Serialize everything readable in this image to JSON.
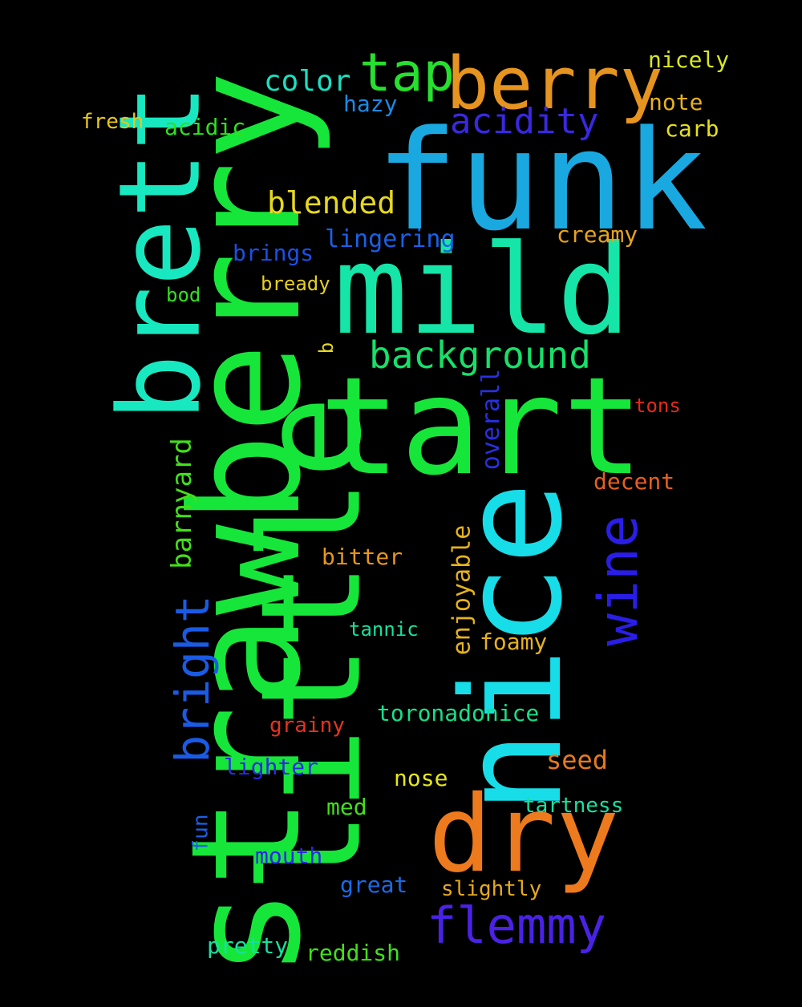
{
  "words": [
    {
      "id": "funk",
      "text": "funk",
      "color": "#1aa8e0"
    },
    {
      "id": "strawberry",
      "text": "strawberry",
      "color": "#16e63a"
    },
    {
      "id": "tart",
      "text": "tart",
      "color": "#16e63a"
    },
    {
      "id": "little",
      "text": "little",
      "color": "#16e63a"
    },
    {
      "id": "nice",
      "text": "nice",
      "color": "#17dde8"
    },
    {
      "id": "mild",
      "text": "mild",
      "color": "#15e6a8"
    },
    {
      "id": "brett",
      "text": "brett",
      "color": "#18e8c0"
    },
    {
      "id": "berry",
      "text": "berry",
      "color": "#e69420"
    },
    {
      "id": "dry",
      "text": "dry",
      "color": "#ee7a1e"
    },
    {
      "id": "tap",
      "text": "tap",
      "color": "#27df2f"
    },
    {
      "id": "flemmy",
      "text": "flemmy",
      "color": "#4a22e6"
    },
    {
      "id": "wine",
      "text": "wine",
      "color": "#2a1ee6"
    },
    {
      "id": "bright",
      "text": "bright",
      "color": "#1a5be6"
    },
    {
      "id": "background",
      "text": "background",
      "color": "#16e06a"
    },
    {
      "id": "acidity",
      "text": "acidity",
      "color": "#3a28e0"
    },
    {
      "id": "color",
      "text": "color",
      "color": "#1ae0c0"
    },
    {
      "id": "blended",
      "text": "blended",
      "color": "#e6d81e"
    },
    {
      "id": "barnyard",
      "text": "barnyard",
      "color": "#42e01a"
    },
    {
      "id": "enjoyable",
      "text": "enjoyable",
      "color": "#e6b31e"
    },
    {
      "id": "overall",
      "text": "overall",
      "color": "#2a30e0"
    },
    {
      "id": "lingering",
      "text": "lingering",
      "color": "#1a60e6"
    },
    {
      "id": "creamy",
      "text": "creamy",
      "color": "#e6a31e"
    },
    {
      "id": "hazy",
      "text": "hazy",
      "color": "#1a8ae6"
    },
    {
      "id": "nicely",
      "text": "nicely",
      "color": "#d8e81e"
    },
    {
      "id": "note",
      "text": "note",
      "color": "#e6b21e"
    },
    {
      "id": "carb",
      "text": "carb",
      "color": "#e6e01e"
    },
    {
      "id": "fresh",
      "text": "fresh",
      "color": "#e6c61e"
    },
    {
      "id": "acidic",
      "text": "acidic",
      "color": "#2fe01e"
    },
    {
      "id": "brings",
      "text": "brings",
      "color": "#1a50e6"
    },
    {
      "id": "bready",
      "text": "bready",
      "color": "#e6d01e"
    },
    {
      "id": "bod",
      "text": "bod",
      "color": "#32e01e"
    },
    {
      "id": "b",
      "text": "b",
      "color": "#e6d81e"
    },
    {
      "id": "tons",
      "text": "tons",
      "color": "#e62a1e"
    },
    {
      "id": "decent",
      "text": "decent",
      "color": "#e6601e"
    },
    {
      "id": "bitter",
      "text": "bitter",
      "color": "#e6961e"
    },
    {
      "id": "tannic",
      "text": "tannic",
      "color": "#18e0a0"
    },
    {
      "id": "foamy",
      "text": "foamy",
      "color": "#e6b21e"
    },
    {
      "id": "toronadonice",
      "text": "toronadonice",
      "color": "#16e08a"
    },
    {
      "id": "grainy",
      "text": "grainy",
      "color": "#e6341e"
    },
    {
      "id": "seed",
      "text": "seed",
      "color": "#e67a1e"
    },
    {
      "id": "lighter",
      "text": "lighter",
      "color": "#2a28e6"
    },
    {
      "id": "nose",
      "text": "nose",
      "color": "#e6e61e"
    },
    {
      "id": "tartness",
      "text": "tartness",
      "color": "#18e0a0"
    },
    {
      "id": "med",
      "text": "med",
      "color": "#42e01a"
    },
    {
      "id": "fun",
      "text": "fun",
      "color": "#1a60e6"
    },
    {
      "id": "mouth",
      "text": "mouth",
      "color": "#2a28e6"
    },
    {
      "id": "great",
      "text": "great",
      "color": "#1a6ae6"
    },
    {
      "id": "slightly",
      "text": "slightly",
      "color": "#e6aa1e"
    },
    {
      "id": "pretty",
      "text": "pretty",
      "color": "#16e0a0"
    },
    {
      "id": "reddish",
      "text": "reddish",
      "color": "#42e01a"
    }
  ]
}
